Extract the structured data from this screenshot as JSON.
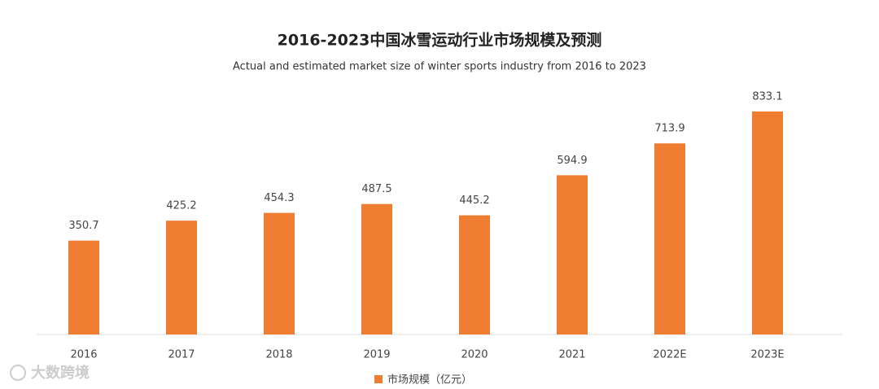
{
  "chart_data": {
    "type": "bar",
    "title": "2016-2023中国冰雪运动行业市场规模及预测",
    "subtitle": "Actual and estimated market size of winter sports industry from 2016 to 2023",
    "categories": [
      "2016",
      "2017",
      "2018",
      "2019",
      "2020",
      "2021",
      "2022E",
      "2023E"
    ],
    "series": [
      {
        "name": "市场规模（亿元）",
        "color": "#ee7d31",
        "values": [
          350.7,
          425.2,
          454.3,
          487.5,
          445.2,
          594.9,
          713.9,
          833.1
        ]
      }
    ],
    "legend": "bottom"
  },
  "watermark": "大数跨境"
}
